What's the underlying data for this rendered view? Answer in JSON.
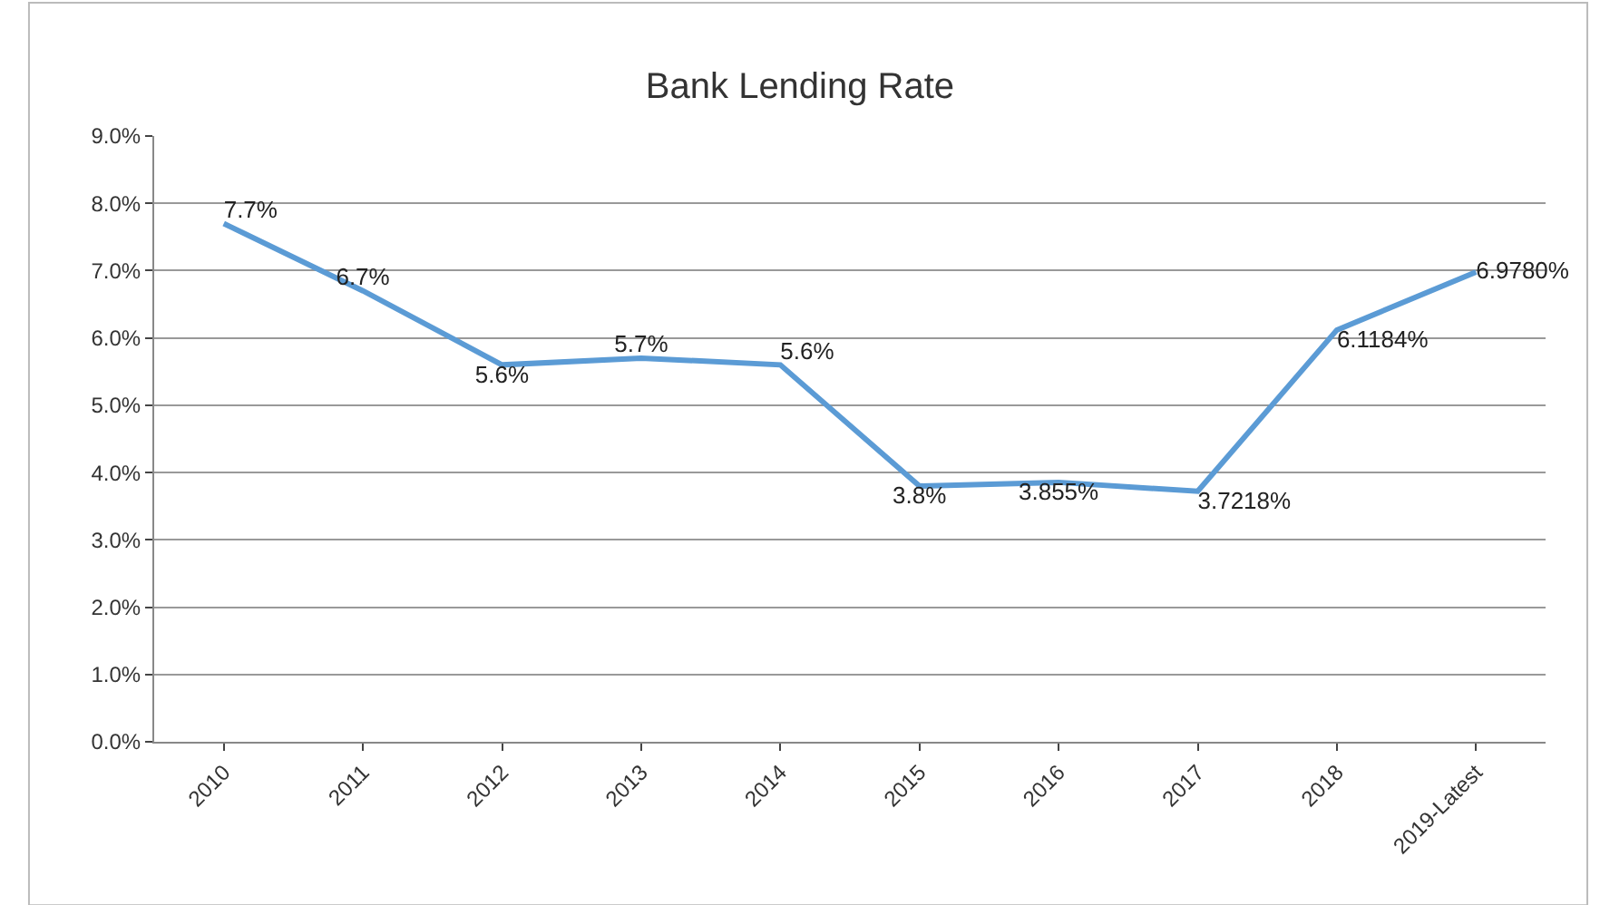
{
  "chart_data": {
    "type": "line",
    "title": "Bank Lending Rate",
    "categories": [
      "2010",
      "2011",
      "2012",
      "2013",
      "2014",
      "2015",
      "2016",
      "2017",
      "2018",
      "2019-Latest"
    ],
    "series": [
      {
        "color": "#5b9bd5",
        "values": [
          7.7,
          6.7,
          5.6,
          5.7,
          5.6,
          3.8,
          3.855,
          3.7218,
          6.1184,
          6.978
        ],
        "value_labels": [
          "7.7%",
          "6.7%",
          "5.6%",
          "5.7%",
          "5.6%",
          "3.8%",
          "3.855%",
          "3.7218%",
          "6.1184%",
          "6.9780%"
        ]
      }
    ],
    "ylim": [
      0,
      9
    ],
    "yticks": [
      {
        "value": 0,
        "label": "0.0%"
      },
      {
        "value": 1,
        "label": "1.0%"
      },
      {
        "value": 2,
        "label": "2.0%"
      },
      {
        "value": 3,
        "label": "3.0%"
      },
      {
        "value": 4,
        "label": "4.0%"
      },
      {
        "value": 5,
        "label": "5.0%"
      },
      {
        "value": 6,
        "label": "6.0%"
      },
      {
        "value": 7,
        "label": "7.0%"
      },
      {
        "value": 8,
        "label": "8.0%"
      },
      {
        "value": 9,
        "label": "9.0%"
      }
    ],
    "grid": "y",
    "marker": "none",
    "line_style": "solid"
  }
}
